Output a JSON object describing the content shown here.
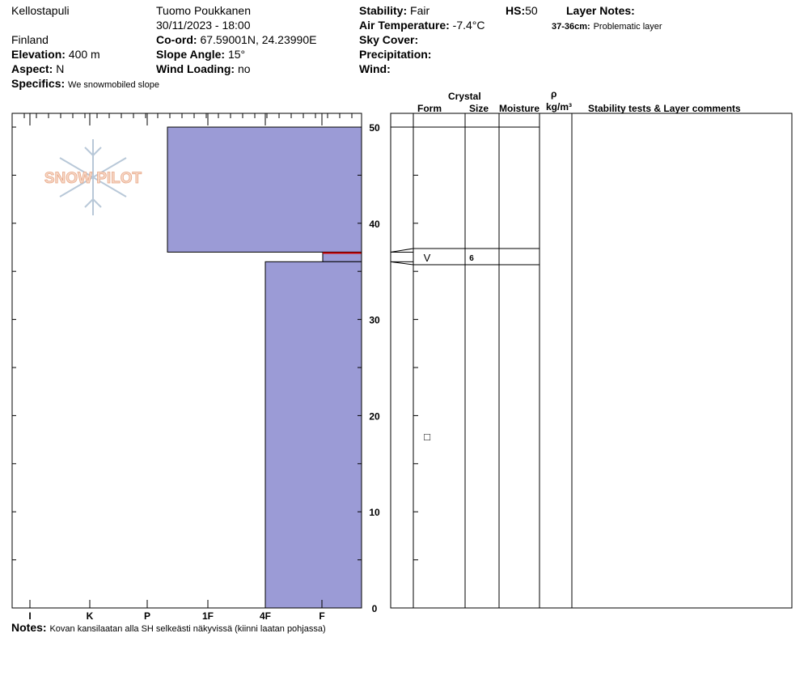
{
  "header": {
    "location": "Kellostapuli",
    "country": "Finland",
    "elevation_label": "Elevation:",
    "elevation_value": "400 m",
    "aspect_label": "Aspect:",
    "aspect_value": "N",
    "specifics_label": "Specifics:",
    "specifics_value": "We snowmobiled slope",
    "observer": "Tuomo Poukkanen",
    "datetime": "30/11/2023 - 18:00",
    "coord_label": "Co-ord:",
    "coord_value": "67.59001N, 24.23990E",
    "slope_label": "Slope Angle:",
    "slope_value": "15°",
    "wind_loading_label": "Wind Loading:",
    "wind_loading_value": "no",
    "stability_label": "Stability:",
    "stability_value": "Fair",
    "hs_label": "HS:",
    "hs_value": "50",
    "air_temp_label": "Air Temperature:",
    "air_temp_value": "-7.4°C",
    "sky_label": "Sky Cover:",
    "precip_label": "Precipitation:",
    "wind_label": "Wind:",
    "layer_notes_label": "Layer Notes:",
    "layer_note_range": "37-36cm:",
    "layer_note_text": "Problematic layer"
  },
  "columns": {
    "crystal": "Crystal",
    "form": "Form",
    "size": "Size",
    "moisture": "Moisture",
    "rho": "ρ",
    "density_unit": "kg/m³",
    "comments": "Stability tests & Layer comments"
  },
  "notes_label": "Notes:",
  "notes_text": "Kovan kansilaatan alla SH selkeästi näkyvissä (kiinni laatan pohjassa)",
  "logo_text": "SNOW PILOT",
  "colors": {
    "layer_fill": "#9b9bd6",
    "problem_line": "#cc0000"
  },
  "chart_data": {
    "type": "snow-profile",
    "hardness_scale": [
      "I",
      "K",
      "P",
      "1F",
      "4F",
      "F"
    ],
    "height_axis": {
      "ticks": [
        0,
        10,
        20,
        30,
        40,
        50
      ],
      "range": [
        0,
        50
      ]
    },
    "layers": [
      {
        "top": 50,
        "bottom": 37,
        "hardness": "1F-",
        "form": "",
        "size": ""
      },
      {
        "top": 37,
        "bottom": 36,
        "hardness": "F+",
        "form": "V",
        "size": "6"
      },
      {
        "top": 36,
        "bottom": 0,
        "hardness": "4F",
        "form": "□",
        "size": ""
      }
    ]
  }
}
